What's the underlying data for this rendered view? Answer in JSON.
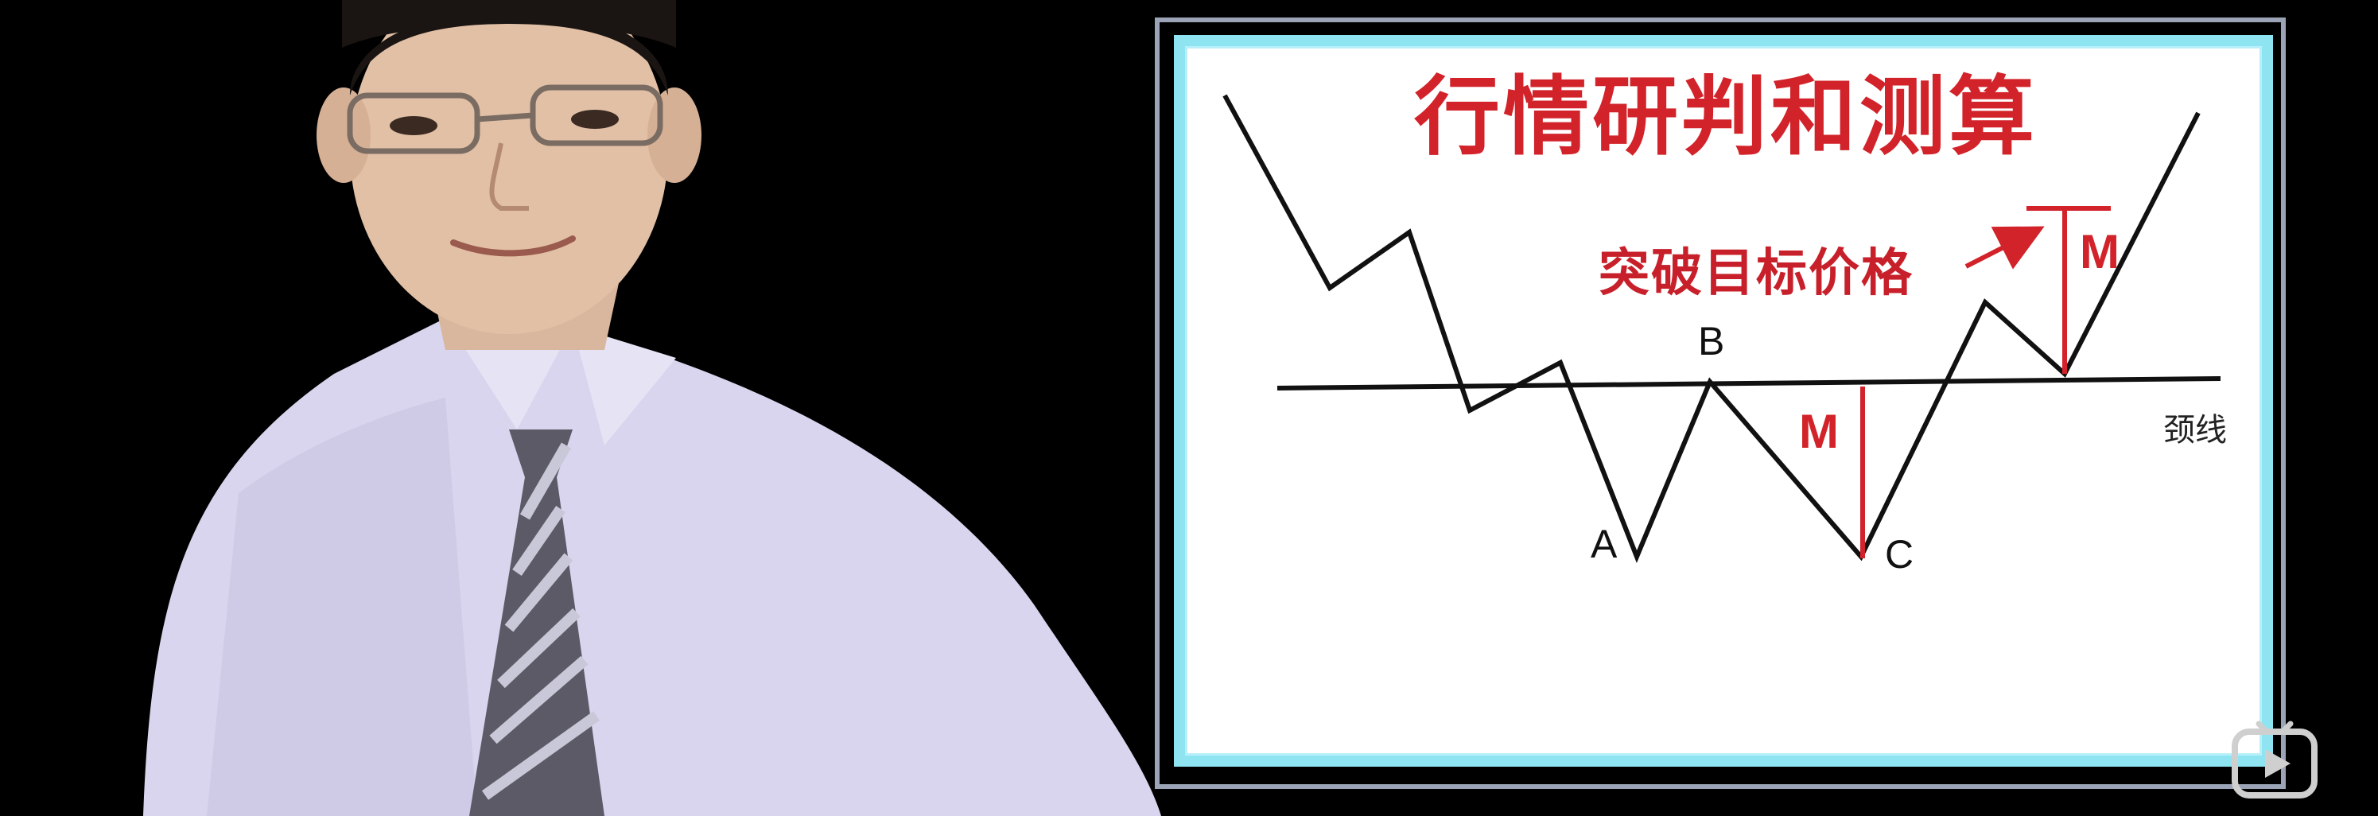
{
  "diagram": {
    "title": "行情研判和测算",
    "target_label": "突破目标价格",
    "neckline_label": "颈线",
    "point_labels": {
      "a": "A",
      "b": "B",
      "c": "C"
    },
    "measure_label_lower": "M",
    "measure_label_upper": "M"
  },
  "colors": {
    "title_red": "#d2232a",
    "board_border": "#8fe4f2",
    "line": "#111111"
  },
  "icons": {
    "watermark": "play-button-icon"
  }
}
